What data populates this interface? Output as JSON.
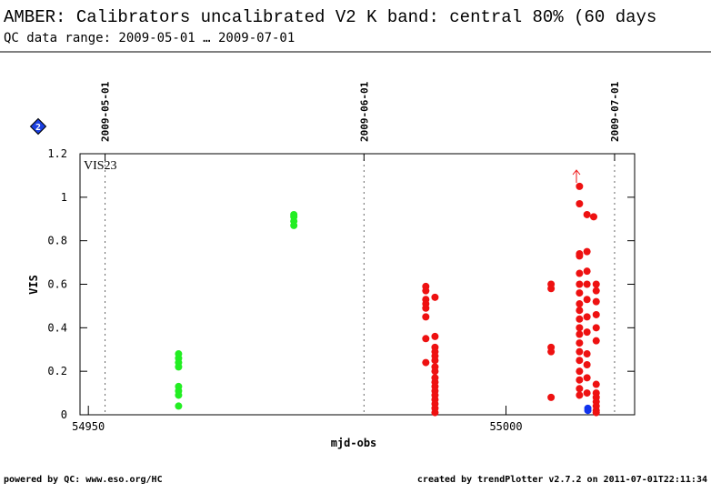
{
  "chart_data": {
    "type": "scatter",
    "title": "AMBER: Calibrators uncalibrated V2 K band: central 80% (60 days",
    "subtitle": "QC data range: 2009-05-01 … 2009-07-01",
    "annotation": "VIS23",
    "badge": "2",
    "x_label": "mjd-obs",
    "y_label": "VIS",
    "footer_left": "powered by QC: www.eso.org/HC",
    "footer_right": "created by trendPlotter v2.7.2 on 2011-07-01T22:11:34",
    "xlim": [
      54949,
      55015.4
    ],
    "xticks": [
      54950,
      55000
    ],
    "x2ticks": [
      {
        "value": 54952,
        "label": "2009-05-01"
      },
      {
        "value": 54983,
        "label": "2009-06-01"
      },
      {
        "value": 55013,
        "label": "2009-07-01"
      }
    ],
    "ylim": [
      0,
      1.2
    ],
    "yticks": [
      0,
      0.2,
      0.4,
      0.6,
      0.8,
      1,
      1.2
    ],
    "series": [
      {
        "color": "#22ee22",
        "x": [
          54960.8,
          54960.8,
          54960.8,
          54960.8,
          54960.8,
          54960.8,
          54960.8,
          54960.8,
          54974.6,
          54974.6,
          54974.6,
          54974.6
        ],
        "y": [
          0.28,
          0.26,
          0.24,
          0.22,
          0.13,
          0.11,
          0.09,
          0.04,
          0.92,
          0.91,
          0.89,
          0.87
        ]
      },
      {
        "color": "#ee1111",
        "x": [
          54990.4,
          54990.4,
          54990.4,
          54990.4,
          54990.4,
          54990.4,
          54990.4,
          54990.4,
          54991.5,
          54991.5,
          54991.5,
          54991.5,
          54991.5,
          54991.5,
          54991.5,
          54991.5,
          54991.5,
          54991.5,
          54991.5,
          54991.5,
          54991.5,
          54991.5,
          54991.5,
          54991.5,
          54991.5,
          55005.4,
          55005.4,
          55005.4,
          55005.4,
          55005.4,
          55008.8,
          55008.8,
          55008.8,
          55008.8,
          55008.8,
          55008.8,
          55008.8,
          55008.8,
          55008.8,
          55008.8,
          55008.8,
          55008.8,
          55008.8,
          55008.8,
          55008.8,
          55008.8,
          55008.8,
          55008.8,
          55008.8,
          55009.7,
          55009.7,
          55009.7,
          55009.7,
          55009.7,
          55009.7,
          55009.7,
          55009.7,
          55009.7,
          55009.7,
          55009.7,
          55010.5,
          55010.8,
          55010.8,
          55010.8,
          55010.8,
          55010.8,
          55010.8,
          55010.8,
          55010.8,
          55010.8,
          55010.8,
          55010.8,
          55010.8,
          55010.8
        ],
        "y": [
          0.59,
          0.57,
          0.53,
          0.51,
          0.49,
          0.45,
          0.35,
          0.24,
          0.54,
          0.36,
          0.31,
          0.29,
          0.27,
          0.25,
          0.22,
          0.2,
          0.17,
          0.15,
          0.13,
          0.11,
          0.09,
          0.07,
          0.05,
          0.03,
          0.01,
          0.6,
          0.58,
          0.31,
          0.29,
          0.08,
          1.05,
          0.97,
          0.74,
          0.73,
          0.65,
          0.6,
          0.56,
          0.51,
          0.48,
          0.44,
          0.4,
          0.37,
          0.33,
          0.29,
          0.25,
          0.2,
          0.16,
          0.12,
          0.09,
          0.92,
          0.75,
          0.66,
          0.6,
          0.53,
          0.45,
          0.38,
          0.28,
          0.23,
          0.17,
          0.1,
          0.91,
          0.6,
          0.57,
          0.52,
          0.46,
          0.4,
          0.34,
          0.14,
          0.1,
          0.08,
          0.06,
          0.04,
          0.02,
          0.01
        ]
      },
      {
        "color": "#1133ee",
        "x": [
          55009.8,
          55009.8
        ],
        "y": [
          0.03,
          0.02
        ]
      }
    ]
  }
}
